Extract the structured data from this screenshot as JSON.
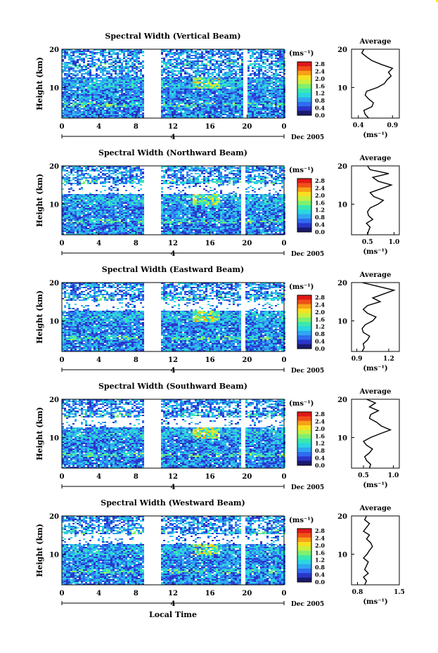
{
  "figure": {
    "xlabel": "Local Time",
    "date_label": "Dec 2005",
    "ylabel": "Height (km)",
    "colorbar_unit": "(ms⁻¹)",
    "avg_title": "Average",
    "avg_xlabel": "(ms⁻¹)",
    "day_marker": "4",
    "colormap": [
      "#1a1a6e",
      "#2a36c8",
      "#2f6cf0",
      "#2fa6f0",
      "#2ad6e0",
      "#3ae8b0",
      "#7ef070",
      "#c8f040",
      "#f8e020",
      "#f8a018",
      "#f05018",
      "#e01818"
    ]
  },
  "chart_data": [
    {
      "type": "heatmap",
      "title": "Spectral Width (Vertical Beam)",
      "x_ticks": [
        "0",
        "4",
        "8",
        "12",
        "16",
        "20",
        "0"
      ],
      "y_ticks": [
        "20",
        "10"
      ],
      "xlim": [
        0,
        24
      ],
      "ylim": [
        2,
        20
      ],
      "data_gaps_hours": [
        [
          8.8,
          10.5
        ],
        [
          19.5,
          20.0
        ]
      ],
      "colorbar": {
        "range": [
          0.0,
          2.8
        ],
        "ticks": [
          "2.8",
          "2.4",
          "2.0",
          "1.6",
          "1.2",
          "0.8",
          "0.4",
          "0.0"
        ]
      },
      "average_profile": {
        "xlim": [
          0.3,
          1.0
        ],
        "x_ticks": [
          "0.4",
          "0.9"
        ],
        "y_ticks": [
          "20",
          "10"
        ],
        "heights_km": [
          2,
          3,
          4,
          5,
          6,
          7,
          8,
          9,
          10,
          11,
          12,
          13,
          14,
          15,
          16,
          17,
          18,
          19,
          20
        ],
        "values": [
          0.55,
          0.5,
          0.48,
          0.6,
          0.62,
          0.55,
          0.5,
          0.52,
          0.68,
          0.78,
          0.82,
          0.88,
          0.84,
          0.9,
          0.74,
          0.6,
          0.52,
          0.45,
          0.48
        ]
      }
    },
    {
      "type": "heatmap",
      "title": "Spectral Width (Northward Beam)",
      "x_ticks": [
        "0",
        "4",
        "8",
        "12",
        "16",
        "20",
        "0"
      ],
      "y_ticks": [
        "20",
        "10"
      ],
      "xlim": [
        0,
        24
      ],
      "ylim": [
        2,
        20
      ],
      "data_gaps_hours": [
        [
          8.8,
          10.5
        ],
        [
          19.3,
          19.8
        ]
      ],
      "colorbar": {
        "range": [
          0.0,
          2.8
        ],
        "ticks": [
          "2.8",
          "2.4",
          "2.0",
          "1.6",
          "1.2",
          "0.8",
          "0.4",
          "0.0"
        ]
      },
      "average_profile": {
        "xlim": [
          0.2,
          1.1
        ],
        "x_ticks": [
          "0.5",
          "1.0"
        ],
        "y_ticks": [
          "20",
          "10"
        ],
        "heights_km": [
          2,
          3,
          4,
          5,
          6,
          7,
          8,
          9,
          10,
          11,
          12,
          13,
          14,
          15,
          16,
          17,
          18,
          19,
          20
        ],
        "values": [
          0.5,
          0.52,
          0.55,
          0.48,
          0.6,
          0.52,
          0.5,
          0.55,
          0.7,
          0.8,
          0.62,
          0.55,
          0.75,
          0.95,
          0.7,
          0.6,
          0.9,
          0.55,
          0.5
        ]
      }
    },
    {
      "type": "heatmap",
      "title": "Spectral Width (Eastward Beam)",
      "x_ticks": [
        "0",
        "4",
        "8",
        "12",
        "16",
        "20",
        "0"
      ],
      "y_ticks": [
        "20",
        "10"
      ],
      "xlim": [
        0,
        24
      ],
      "ylim": [
        2,
        20
      ],
      "data_gaps_hours": [
        [
          8.8,
          10.5
        ],
        [
          19.3,
          19.8
        ]
      ],
      "colorbar": {
        "range": [
          0.0,
          2.8
        ],
        "ticks": [
          "2.8",
          "2.4",
          "2.0",
          "1.6",
          "1.2",
          "0.8",
          "0.4",
          "0.0"
        ]
      },
      "average_profile": {
        "xlim": [
          0.85,
          1.3
        ],
        "x_ticks": [
          "0.9",
          "1.2"
        ],
        "y_ticks": [
          "20",
          "10"
        ],
        "heights_km": [
          2,
          3,
          4,
          5,
          6,
          7,
          8,
          9,
          10,
          11,
          12,
          13,
          14,
          15,
          16,
          17,
          18,
          19,
          20
        ],
        "values": [
          0.95,
          0.97,
          0.96,
          1.0,
          1.02,
          0.96,
          0.95,
          0.98,
          1.05,
          1.08,
          1.0,
          0.96,
          1.0,
          1.12,
          1.05,
          1.15,
          1.25,
          1.1,
          0.95
        ]
      }
    },
    {
      "type": "heatmap",
      "title": "Spectral Width (Southward Beam)",
      "x_ticks": [
        "0",
        "4",
        "8",
        "12",
        "16",
        "20",
        "0"
      ],
      "y_ticks": [
        "20",
        "10"
      ],
      "xlim": [
        0,
        24
      ],
      "ylim": [
        2,
        20
      ],
      "data_gaps_hours": [
        [
          8.8,
          10.5
        ],
        [
          19.3,
          19.8
        ]
      ],
      "colorbar": {
        "range": [
          0.0,
          2.8
        ],
        "ticks": [
          "2.8",
          "2.4",
          "2.0",
          "1.6",
          "1.2",
          "0.8",
          "0.4",
          "0.0"
        ]
      },
      "average_profile": {
        "xlim": [
          0.3,
          1.1
        ],
        "x_ticks": [
          "0.5",
          "1.0"
        ],
        "y_ticks": [
          "20",
          "10"
        ],
        "heights_km": [
          2,
          3,
          4,
          5,
          6,
          7,
          8,
          9,
          10,
          11,
          12,
          13,
          14,
          15,
          16,
          17,
          18,
          19,
          20
        ],
        "values": [
          0.6,
          0.62,
          0.55,
          0.52,
          0.6,
          0.65,
          0.55,
          0.5,
          0.62,
          0.78,
          0.95,
          0.8,
          0.72,
          0.6,
          0.62,
          0.75,
          0.6,
          0.7,
          0.55
        ]
      }
    },
    {
      "type": "heatmap",
      "title": "Spectral Width (Westward Beam)",
      "x_ticks": [
        "0",
        "4",
        "8",
        "12",
        "16",
        "20",
        "0"
      ],
      "y_ticks": [
        "20",
        "10"
      ],
      "xlim": [
        0,
        24
      ],
      "ylim": [
        2,
        20
      ],
      "data_gaps_hours": [
        [
          8.8,
          10.5
        ],
        [
          19.3,
          19.8
        ]
      ],
      "colorbar": {
        "range": [
          0.0,
          2.8
        ],
        "ticks": [
          "2.8",
          "2.4",
          "2.0",
          "1.6",
          "1.2",
          "0.8",
          "0.4",
          "0.0"
        ]
      },
      "average_profile": {
        "xlim": [
          0.7,
          1.5
        ],
        "x_ticks": [
          "0.8",
          "1.5"
        ],
        "y_ticks": [
          "20",
          "10"
        ],
        "heights_km": [
          2,
          3,
          4,
          5,
          6,
          7,
          8,
          9,
          10,
          11,
          12,
          13,
          14,
          15,
          16,
          17,
          18,
          19,
          20
        ],
        "values": [
          0.92,
          0.95,
          0.9,
          0.98,
          0.92,
          0.95,
          0.98,
          0.9,
          0.96,
          1.0,
          1.05,
          1.02,
          0.95,
          1.0,
          0.9,
          0.95,
          1.0,
          0.92,
          0.95
        ]
      }
    }
  ]
}
